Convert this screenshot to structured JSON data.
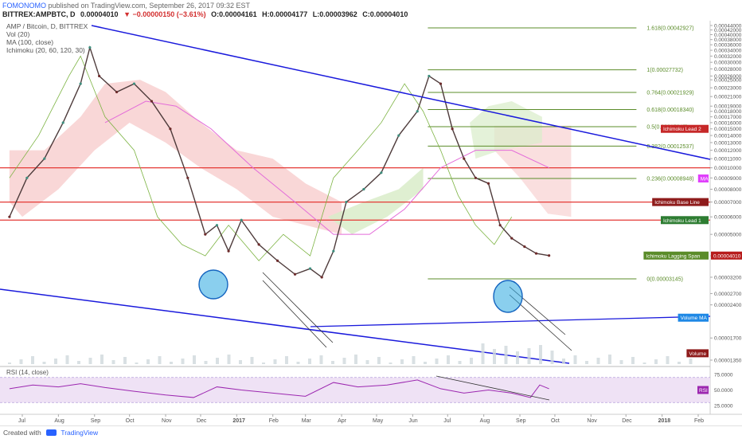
{
  "header": {
    "user": "FOMONOMO",
    "published_text": "published on TradingView.com, September 26, 2017 09:32 EST",
    "ticker": "BITTREX:AMPBTC, D",
    "last": "0.00004010",
    "change": "▼ −0.00000150 (−3.61%)",
    "open": "O:0.00004161",
    "high": "H:0.00004177",
    "low": "L:0.00003962",
    "close": "C:0.00004010"
  },
  "legend": [
    "AMP / Bitcoin, D, BITTREX",
    "Vol (20)",
    "MA (100, close)",
    "Ichimoku (20, 60, 120, 30)"
  ],
  "footer": {
    "created_with": "Created with",
    "brand": "TradingView"
  },
  "colors": {
    "trend": "#1a1adc",
    "fib": "#5b8c2a",
    "horizontal": "#e53935",
    "cloud_red": "#f7c9c9",
    "cloud_green": "#d9ecc9",
    "up": "#3e8e7e",
    "down": "#6d2b2b",
    "ma": "#e36bd9",
    "rsi": "#9c27b0",
    "circle": "#2aa8e0"
  },
  "chart_data": [
    {
      "type": "line",
      "title": "AMP / Bitcoin, D, BITTREX",
      "x_ticks": [
        "Jul",
        "Aug",
        "Sep",
        "Oct",
        "Nov",
        "Dec",
        "2017",
        "Feb",
        "Mar",
        "Apr",
        "May",
        "Jun",
        "Jul",
        "Aug",
        "Sep",
        "Oct",
        "Nov",
        "Dec",
        "2018",
        "Feb"
      ],
      "y_ticks": [
        "0.00044000",
        "0.00042000",
        "0.00040000",
        "0.00038000",
        "0.00036000",
        "0.00034000",
        "0.00032000",
        "0.00030000",
        "0.00028000",
        "0.00026000",
        "0.00025000",
        "0.00023000",
        "0.00021000",
        "0.00019000",
        "0.00018000",
        "0.00017000",
        "0.00016000",
        "0.00015000",
        "0.00014000",
        "0.00013000",
        "0.00012000",
        "0.00011000",
        "0.00010000",
        "0.00009000",
        "0.00008000",
        "0.00007000",
        "0.00006000",
        "0.00005000",
        "0.00004000",
        "0.00003200",
        "0.00002700",
        "0.00002400",
        "0.00001700",
        "0.00001350"
      ],
      "scale": "log",
      "series": [
        {
          "name": "AMP / Bitcoin",
          "x": [
            "2016-06-20",
            "2016-07-05",
            "2016-07-20",
            "2016-08-05",
            "2016-08-20",
            "2016-08-28",
            "2016-09-05",
            "2016-09-20",
            "2016-10-05",
            "2016-10-20",
            "2016-11-05",
            "2016-11-20",
            "2016-12-05",
            "2016-12-15",
            "2016-12-25",
            "2017-01-05",
            "2017-01-20",
            "2017-02-05",
            "2017-02-20",
            "2017-03-05",
            "2017-03-15",
            "2017-03-25",
            "2017-04-05",
            "2017-04-20",
            "2017-05-05",
            "2017-05-20",
            "2017-06-05",
            "2017-06-15",
            "2017-06-25",
            "2017-07-05",
            "2017-07-15",
            "2017-07-25",
            "2017-08-05",
            "2017-08-15",
            "2017-08-25",
            "2017-09-05",
            "2017-09-15",
            "2017-09-26"
          ],
          "values": [
            6e-05,
            9e-05,
            0.00011,
            0.00016,
            0.00024,
            0.00035,
            0.00026,
            0.00022,
            0.00024,
            0.0002,
            0.00015,
            9e-05,
            5e-05,
            5.5e-05,
            4.2e-05,
            5.8e-05,
            4.5e-05,
            3.8e-05,
            3.3e-05,
            3.5e-05,
            3.2e-05,
            4.2e-05,
            7e-05,
            8e-05,
            9.5e-05,
            0.00014,
            0.00018,
            0.00026,
            0.00024,
            0.00015,
            0.00011,
            9e-05,
            8.5e-05,
            5.5e-05,
            4.8e-05,
            4.4e-05,
            4.1e-05,
            4.01e-05
          ]
        }
      ],
      "fibonacci": [
        {
          "label": "1.618(0.00042927)",
          "value": 0.00042927
        },
        {
          "label": "1(0.00027732)",
          "value": 0.00027732
        },
        {
          "label": "0.764(0.00021929)",
          "value": 0.00021929
        },
        {
          "label": "0.618(0.00018340)",
          "value": 0.0001834
        },
        {
          "label": "0.5(0.00015345)",
          "value": 0.00015345
        },
        {
          "label": "0.382(0.00012537)",
          "value": 0.00012537
        },
        {
          "label": "0.236(0.00008948)",
          "value": 8.948e-05
        },
        {
          "label": "0(0.00003145)",
          "value": 3.145e-05
        }
      ],
      "horizontal_levels": [
        0.0001,
        7e-05,
        5.8e-05
      ],
      "right_labels": [
        {
          "text": "Ichimoku Lead 2",
          "value": 0.00015,
          "color": "#c62828"
        },
        {
          "text": "MA",
          "value": 8.948e-05,
          "color": "#e040fb"
        },
        {
          "text": "Ichimoku Base Line",
          "value": 7e-05,
          "color": "#8e1b1b"
        },
        {
          "text": "Ichimoku Lead 1",
          "value": 5.8e-05,
          "color": "#2e7d32"
        },
        {
          "text": "Ichimoku Lagging Span",
          "value": 4.01e-05,
          "color": "#5b8c2a"
        },
        {
          "text": "0.00004010",
          "value": 4.01e-05,
          "color": "#b71c1c"
        },
        {
          "text": "Volume MA",
          "value": 2.1e-05,
          "color": "#1e88e5"
        },
        {
          "text": "Volume",
          "value": 1.45e-05,
          "color": "#8e1b1b"
        }
      ]
    },
    {
      "type": "line",
      "title": "RSI (14, close)",
      "y_ticks": [
        "75.0000",
        "50.0000",
        "25.0000"
      ],
      "ylim": [
        15,
        85
      ],
      "band": [
        30,
        70
      ],
      "series": [
        {
          "name": "RSI",
          "x": [
            "2016-06-20",
            "2016-07-10",
            "2016-08-01",
            "2016-08-20",
            "2016-09-10",
            "2016-10-05",
            "2016-11-01",
            "2016-11-25",
            "2016-12-15",
            "2017-01-05",
            "2017-02-01",
            "2017-03-01",
            "2017-03-25",
            "2017-04-15",
            "2017-05-10",
            "2017-06-05",
            "2017-06-25",
            "2017-07-15",
            "2017-08-05",
            "2017-08-25",
            "2017-09-10",
            "2017-09-18",
            "2017-09-26"
          ],
          "values": [
            52,
            58,
            55,
            60,
            54,
            48,
            42,
            38,
            55,
            50,
            45,
            40,
            62,
            55,
            58,
            66,
            52,
            45,
            50,
            45,
            38,
            58,
            52
          ]
        }
      ],
      "right_label": "RSI"
    }
  ]
}
